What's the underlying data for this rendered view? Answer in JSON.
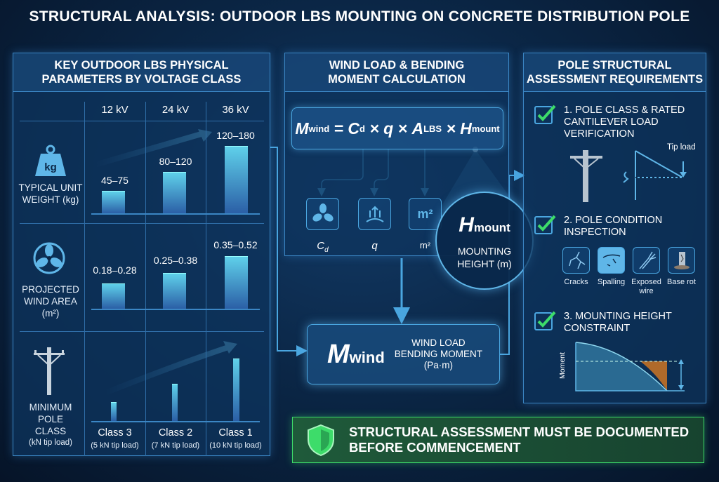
{
  "title": "STRUCTURAL ANALYSIS: OUTDOOR LBS MOUNTING ON CONCRETE DISTRIBUTION POLE",
  "left_panel": {
    "heading_line1": "KEY OUTDOOR LBS PHYSICAL",
    "heading_line2": "PARAMETERS BY VOLTAGE CLASS",
    "columns": [
      "12 kV",
      "24 kV",
      "36 kV"
    ],
    "rows": [
      {
        "icon": "weight-kg-icon",
        "icon_text": "kg",
        "label_lines": [
          "TYPICAL UNIT",
          "WEIGHT (kg)"
        ],
        "values": [
          "45–75",
          "80–120",
          "120–180"
        ]
      },
      {
        "icon": "fan-icon",
        "label_lines": [
          "PROJECTED",
          "WIND AREA",
          "(m²)"
        ],
        "values": [
          "0.18–0.28",
          "0.25–0.38",
          "0.35–0.52"
        ]
      },
      {
        "icon": "utility-pole-icon",
        "label_lines": [
          "MINIMUM",
          "POLE",
          "CLASS",
          "(kN tip load)"
        ],
        "values": [
          "Class 3",
          "Class 2",
          "Class 1"
        ],
        "sub_values": [
          "(5 kN tip load)",
          "(7 kN tip load)",
          "(10 kN tip load)"
        ]
      }
    ]
  },
  "middle_panel": {
    "heading_line1": "WIND LOAD & BENDING",
    "heading_line2": "MOMENT CALCULATION",
    "formula": {
      "M": "M",
      "M_sub": "wind",
      "eq": " = ",
      "Cd": "C",
      "Cd_sub": "d",
      "x1": " × ",
      "q": "q",
      "x2": " × ",
      "A": "A",
      "A_sub": "LBS",
      "x3": " × ",
      "H": "H",
      "H_sub": "mount"
    },
    "factors": [
      {
        "icon": "fan-icon",
        "label": "C",
        "label_sub": "d"
      },
      {
        "icon": "dynamic-pressure-icon",
        "label": "q"
      },
      {
        "icon": "area-m2-icon",
        "icon_text": "m²",
        "label": "m²"
      }
    ],
    "callout": {
      "symbol": "H",
      "symbol_sub": "mount",
      "line1": "MOUNTING",
      "line2": "HEIGHT (m)"
    },
    "result": {
      "symbol": "M",
      "symbol_sub": "wind",
      "line1": "WIND LOAD",
      "line2": "BENDING MOMENT",
      "line3": "(Pa·m)"
    }
  },
  "right_panel": {
    "heading_line1": "POLE STRUCTURAL",
    "heading_line2": "ASSESSMENT REQUIREMENTS",
    "items": [
      {
        "lines": [
          "1. POLE CLASS & RATED",
          "CANTILEVER LOAD",
          "VERIFICATION"
        ],
        "checked": true,
        "diagram_label": "Tip load"
      },
      {
        "lines": [
          "2. POLE CONDITION",
          "INSPECTION"
        ],
        "checked": true,
        "defects": [
          {
            "icon": "cracks-icon",
            "label": "Cracks"
          },
          {
            "icon": "spalling-icon",
            "label": "Spalling"
          },
          {
            "icon": "exposed-wire-icon",
            "label": "Exposed",
            "label2": "wire"
          },
          {
            "icon": "base-rot-icon",
            "label": "Base rot"
          }
        ]
      },
      {
        "lines": [
          "3. MOUNTING HEIGHT",
          "CONSTRAINT"
        ],
        "checked": true,
        "axis_label": "Moment"
      }
    ]
  },
  "banner": {
    "icon": "shield-check-icon",
    "line1": "STRUCTURAL ASSESSMENT MUST BE DOCUMENTED",
    "line2": "BEFORE COMMENCEMENT",
    "color": "#1f5a3a"
  },
  "colors": {
    "background": "#0b2747",
    "accent": "#4aa6e0",
    "check": "#3ddc6a",
    "highlight": "#b06a2a"
  }
}
